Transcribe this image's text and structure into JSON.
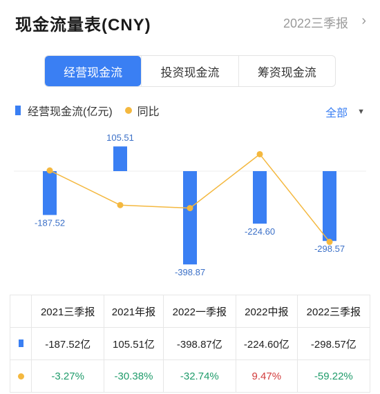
{
  "header": {
    "title": "现金流量表(CNY)",
    "period": "2022三季报"
  },
  "tabs": [
    {
      "label": "经营现金流",
      "active": true
    },
    {
      "label": "投资现金流",
      "active": false
    },
    {
      "label": "筹资现金流",
      "active": false
    }
  ],
  "legend": {
    "bar": "经营现金流(亿元)",
    "line": "同比",
    "selector": "全部"
  },
  "colors": {
    "accent": "#3a7ff3",
    "line": "#f4b83f",
    "positive": "#d23c3c",
    "negative": "#1e9b6a"
  },
  "chart_data": {
    "type": "bar",
    "categories": [
      "2021三季报",
      "2021年报",
      "2022一季报",
      "2022中报",
      "2022三季报"
    ],
    "series": [
      {
        "name": "经营现金流(亿元)",
        "type": "bar",
        "values": [
          -187.52,
          105.51,
          -398.87,
          -224.6,
          -298.57
        ],
        "labels": [
          "-187.52",
          "105.51",
          "-398.87",
          "-224.60",
          "-298.57"
        ]
      },
      {
        "name": "同比",
        "type": "line",
        "values": [
          -3.27,
          -30.38,
          -32.74,
          9.47,
          -59.22
        ]
      }
    ]
  },
  "table": {
    "headers": [
      "2021三季报",
      "2021年报",
      "2022一季报",
      "2022中报",
      "2022三季报"
    ],
    "value_row": [
      "-187.52亿",
      "105.51亿",
      "-398.87亿",
      "-224.60亿",
      "-298.57亿"
    ],
    "yoy_row": [
      "-3.27%",
      "-30.38%",
      "-32.74%",
      "9.47%",
      "-59.22%"
    ]
  }
}
